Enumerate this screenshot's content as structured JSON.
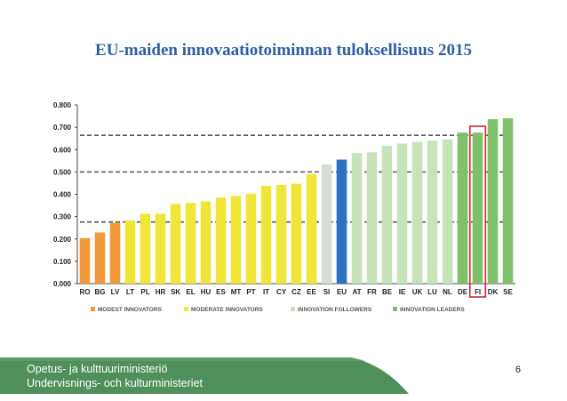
{
  "slide": {
    "title": "EU-maiden innovaatiotoiminnan tuloksellisuus 2015",
    "page_number": "6",
    "footer_line1": "Opetus- ja kulttuuriministeriö",
    "footer_line2": "Undervisnings- och kulturministeriet"
  },
  "chart_data": {
    "type": "bar",
    "title": "",
    "xlabel": "",
    "ylabel": "",
    "ylim": [
      0,
      0.8
    ],
    "yticks": [
      "0.000",
      "0.100",
      "0.200",
      "0.300",
      "0.400",
      "0.500",
      "0.600",
      "0.700",
      "0.800"
    ],
    "grid": false,
    "categories": [
      "RO",
      "BG",
      "LV",
      "LT",
      "PL",
      "HR",
      "SK",
      "EL",
      "HU",
      "ES",
      "MT",
      "PT",
      "IT",
      "CY",
      "CZ",
      "EE",
      "SI",
      "EU",
      "AT",
      "FR",
      "BE",
      "IE",
      "UK",
      "LU",
      "NL",
      "DE",
      "FI",
      "DK",
      "SE"
    ],
    "values": [
      0.204,
      0.229,
      0.272,
      0.283,
      0.313,
      0.313,
      0.357,
      0.361,
      0.368,
      0.385,
      0.392,
      0.403,
      0.438,
      0.442,
      0.447,
      0.49,
      0.534,
      0.555,
      0.585,
      0.588,
      0.617,
      0.627,
      0.634,
      0.64,
      0.646,
      0.676,
      0.676,
      0.736,
      0.74
    ],
    "groups": [
      "modest",
      "modest",
      "modest",
      "moderate",
      "moderate",
      "moderate",
      "moderate",
      "moderate",
      "moderate",
      "moderate",
      "moderate",
      "moderate",
      "moderate",
      "moderate",
      "moderate",
      "moderate",
      "follower",
      "eu",
      "follower",
      "follower",
      "follower",
      "follower",
      "follower",
      "follower",
      "follower",
      "leader",
      "leader",
      "leader",
      "leader"
    ],
    "group_colors": {
      "modest": "#f39a3c",
      "moderate": "#f0e63a",
      "follower": "#c6e4b8",
      "follower_dark": "#d5ddd4",
      "eu": "#2b72c2",
      "leader": "#7fc06b"
    },
    "threshold_lines": [
      0.276,
      0.5,
      0.664
    ],
    "highlighted_category": "FI",
    "highlight_color": "#cc2a2a",
    "legend": [
      {
        "label": "MODEST INNOVATORS",
        "color": "#f39a3c"
      },
      {
        "label": "MODERATE INNOVATORS",
        "color": "#f0e63a"
      },
      {
        "label": "INNOVATION FOLLOWERS",
        "color": "#c6e4b8"
      },
      {
        "label": "INNOVATION LEADERS",
        "color": "#7fc06b"
      }
    ],
    "legend_position": "bottom"
  },
  "colors": {
    "title": "#2e5fa3",
    "footer_band": "#4f8f59"
  }
}
